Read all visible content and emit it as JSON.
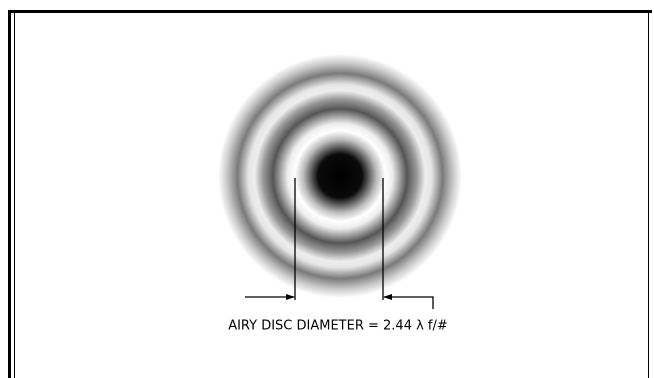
{
  "diagram": {
    "label": "AIRY DISC DIAMETER = 2.44 λ f/#"
  }
}
